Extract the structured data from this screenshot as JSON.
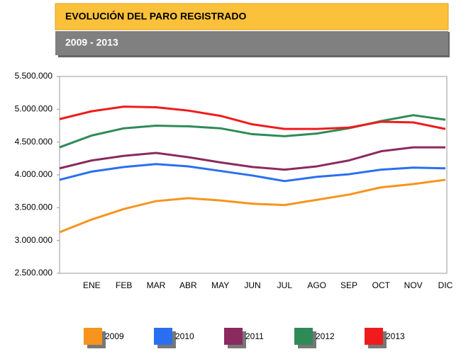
{
  "chart_data": {
    "type": "line",
    "title": "EVOLUCIÓN DEL PARO REGISTRADO",
    "subtitle": "2009 - 2013",
    "categories": [
      null,
      "ENE",
      "FEB",
      "MAR",
      "ABR",
      "MAY",
      "JUN",
      "JUL",
      "AGO",
      "SEP",
      "OCT",
      "NOV",
      "DIC"
    ],
    "series": [
      {
        "name": "2009",
        "color": "#f7941d",
        "values": [
          3126000,
          3320000,
          3480000,
          3600000,
          3645000,
          3610000,
          3560000,
          3540000,
          3620000,
          3700000,
          3810000,
          3860000,
          3925000
        ]
      },
      {
        "name": "2010",
        "color": "#2a6ff0",
        "values": [
          3925000,
          4050000,
          4120000,
          4165000,
          4130000,
          4060000,
          3990000,
          3905000,
          3970000,
          4010000,
          4080000,
          4110000,
          4100000
        ]
      },
      {
        "name": "2011",
        "color": "#8b2a5e",
        "values": [
          4100000,
          4220000,
          4290000,
          4335000,
          4270000,
          4190000,
          4120000,
          4080000,
          4130000,
          4220000,
          4360000,
          4420000,
          4420000
        ]
      },
      {
        "name": "2012",
        "color": "#2e8b57",
        "values": [
          4420000,
          4600000,
          4710000,
          4750000,
          4740000,
          4710000,
          4620000,
          4590000,
          4630000,
          4710000,
          4820000,
          4910000,
          4840000
        ]
      },
      {
        "name": "2013",
        "color": "#ee1c1c",
        "values": [
          4850000,
          4970000,
          5040000,
          5030000,
          4980000,
          4900000,
          4770000,
          4700000,
          4700000,
          4720000,
          4810000,
          4800000,
          4700000
        ]
      }
    ],
    "ylim": [
      2500000,
      5500000
    ],
    "yticks": [
      {
        "value": 2500000,
        "label": "2.500.000"
      },
      {
        "value": 3000000,
        "label": "3.000.000"
      },
      {
        "value": 3500000,
        "label": "3.500.000"
      },
      {
        "value": 4000000,
        "label": "4.000.000"
      },
      {
        "value": 4500000,
        "label": "4.500.000"
      },
      {
        "value": 5000000,
        "label": "5.000.000"
      },
      {
        "value": 5500000,
        "label": "5.500.000"
      }
    ],
    "legend": "bottom"
  }
}
